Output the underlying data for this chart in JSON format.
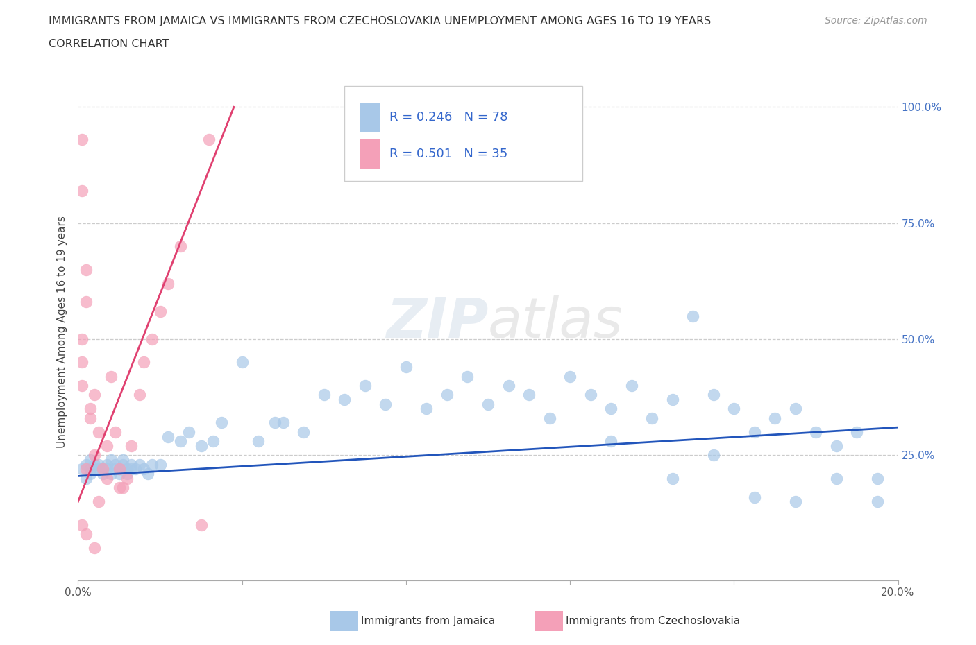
{
  "title_line1": "IMMIGRANTS FROM JAMAICA VS IMMIGRANTS FROM CZECHOSLOVAKIA UNEMPLOYMENT AMONG AGES 16 TO 19 YEARS",
  "title_line2": "CORRELATION CHART",
  "source": "Source: ZipAtlas.com",
  "ylabel": "Unemployment Among Ages 16 to 19 years",
  "xlim": [
    0.0,
    0.2
  ],
  "ylim": [
    -0.02,
    1.05
  ],
  "jamaica_color": "#a8c8e8",
  "czechoslovakia_color": "#f4a0b8",
  "jamaica_line_color": "#2255bb",
  "czechoslovakia_line_color": "#e04070",
  "jamaica_R": 0.246,
  "jamaica_N": 78,
  "czechoslovakia_R": 0.501,
  "czechoslovakia_N": 35,
  "jam_line_x0": 0.0,
  "jam_line_y0": 0.205,
  "jam_line_x1": 0.2,
  "jam_line_y1": 0.31,
  "cz_line_x0": 0.0,
  "cz_line_y0": 0.15,
  "cz_line_x1": 0.038,
  "cz_line_y1": 1.0,
  "jam_scatter_x": [
    0.001,
    0.002,
    0.002,
    0.003,
    0.003,
    0.003,
    0.004,
    0.004,
    0.005,
    0.005,
    0.006,
    0.006,
    0.007,
    0.007,
    0.008,
    0.008,
    0.009,
    0.009,
    0.01,
    0.01,
    0.011,
    0.011,
    0.012,
    0.012,
    0.013,
    0.013,
    0.014,
    0.015,
    0.016,
    0.017,
    0.018,
    0.02,
    0.022,
    0.025,
    0.027,
    0.03,
    0.033,
    0.035,
    0.04,
    0.044,
    0.048,
    0.05,
    0.055,
    0.06,
    0.065,
    0.07,
    0.075,
    0.08,
    0.085,
    0.09,
    0.095,
    0.1,
    0.105,
    0.11,
    0.115,
    0.12,
    0.125,
    0.13,
    0.135,
    0.14,
    0.145,
    0.15,
    0.155,
    0.16,
    0.165,
    0.17,
    0.175,
    0.18,
    0.185,
    0.19,
    0.195,
    0.195,
    0.185,
    0.175,
    0.165,
    0.155,
    0.145,
    0.13
  ],
  "jam_scatter_y": [
    0.22,
    0.23,
    0.2,
    0.24,
    0.21,
    0.22,
    0.22,
    0.23,
    0.23,
    0.22,
    0.22,
    0.21,
    0.23,
    0.22,
    0.24,
    0.21,
    0.23,
    0.22,
    0.22,
    0.21,
    0.23,
    0.24,
    0.22,
    0.21,
    0.22,
    0.23,
    0.22,
    0.23,
    0.22,
    0.21,
    0.23,
    0.23,
    0.29,
    0.28,
    0.3,
    0.27,
    0.28,
    0.32,
    0.45,
    0.28,
    0.32,
    0.32,
    0.3,
    0.38,
    0.37,
    0.4,
    0.36,
    0.44,
    0.35,
    0.38,
    0.42,
    0.36,
    0.4,
    0.38,
    0.33,
    0.42,
    0.38,
    0.35,
    0.4,
    0.33,
    0.37,
    0.55,
    0.38,
    0.35,
    0.3,
    0.33,
    0.35,
    0.3,
    0.27,
    0.3,
    0.2,
    0.15,
    0.2,
    0.15,
    0.16,
    0.25,
    0.2,
    0.28
  ],
  "cz_scatter_x": [
    0.001,
    0.001,
    0.001,
    0.001,
    0.001,
    0.002,
    0.002,
    0.002,
    0.003,
    0.003,
    0.004,
    0.004,
    0.005,
    0.005,
    0.006,
    0.007,
    0.007,
    0.008,
    0.009,
    0.01,
    0.01,
    0.011,
    0.012,
    0.013,
    0.015,
    0.016,
    0.018,
    0.02,
    0.022,
    0.025,
    0.03,
    0.032,
    0.001,
    0.002,
    0.004
  ],
  "cz_scatter_y": [
    0.93,
    0.82,
    0.5,
    0.45,
    0.4,
    0.65,
    0.58,
    0.22,
    0.35,
    0.33,
    0.38,
    0.25,
    0.3,
    0.15,
    0.22,
    0.27,
    0.2,
    0.42,
    0.3,
    0.22,
    0.18,
    0.18,
    0.2,
    0.27,
    0.38,
    0.45,
    0.5,
    0.56,
    0.62,
    0.7,
    0.1,
    0.93,
    0.1,
    0.08,
    0.05
  ]
}
